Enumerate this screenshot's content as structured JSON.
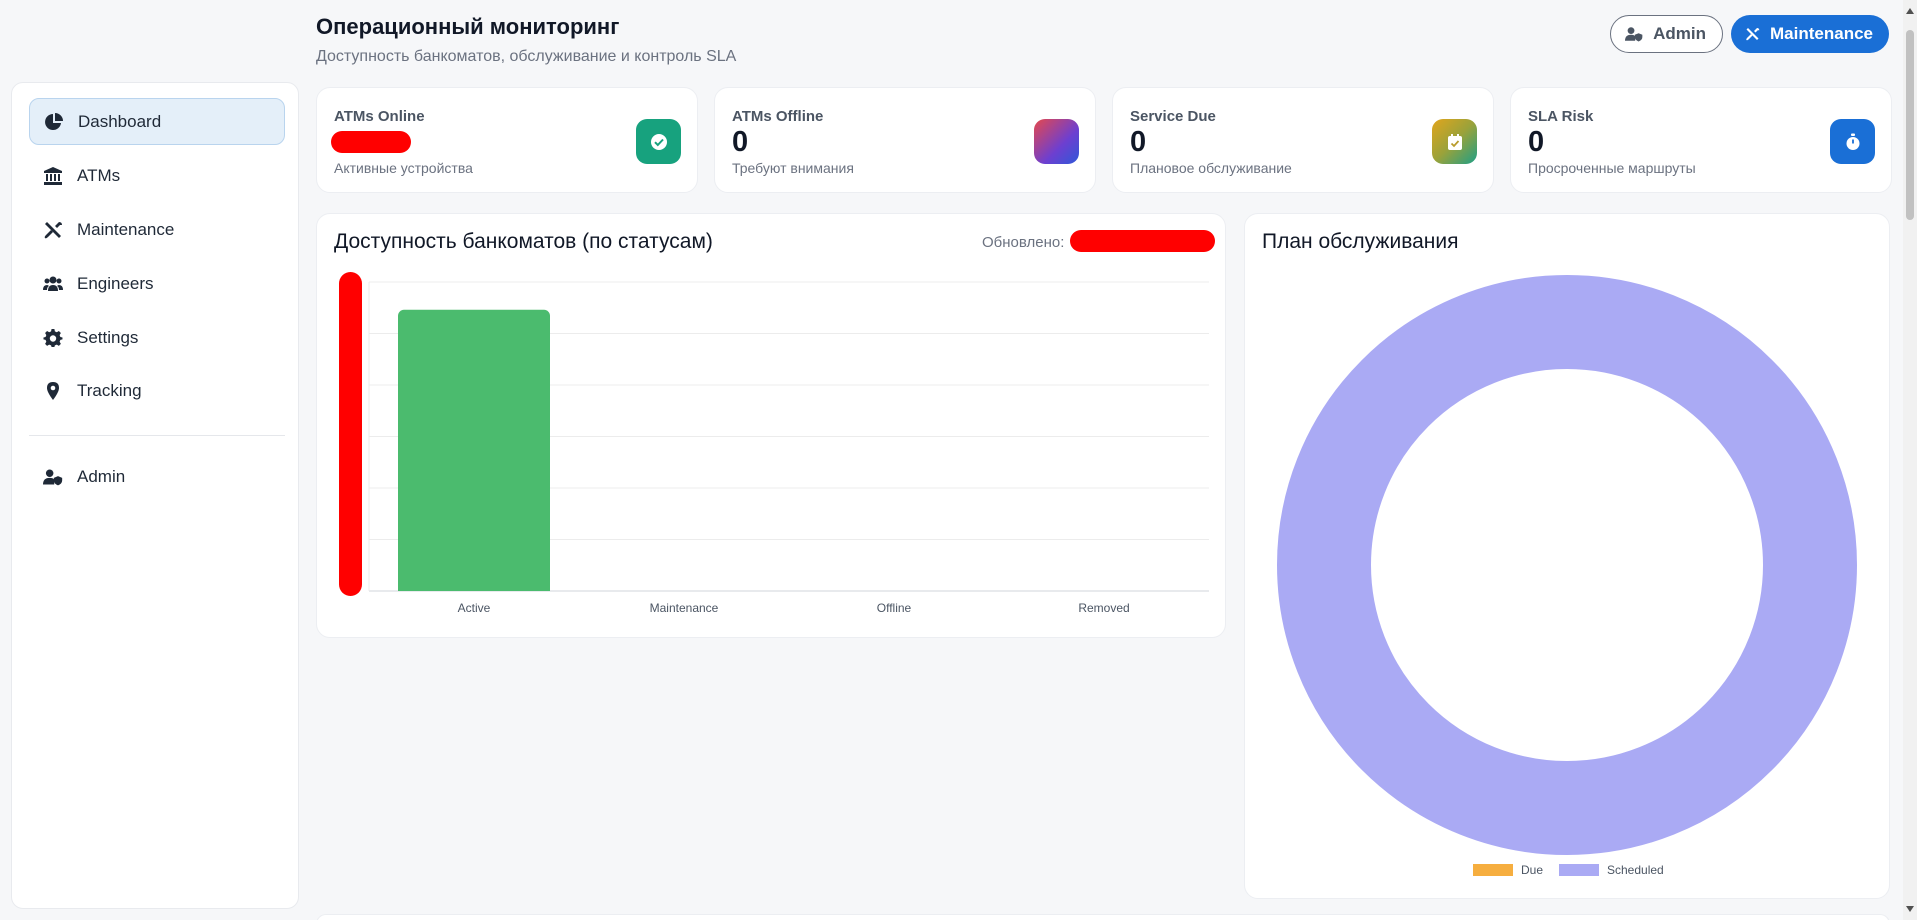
{
  "header": {
    "title": "Операционный мониторинг",
    "subtitle": "Доступность банкоматов, обслуживание и контроль SLA",
    "admin_button": "Admin",
    "maintenance_button": "Maintenance"
  },
  "sidebar": {
    "items": [
      {
        "label": "Dashboard",
        "icon": "chart-pie-icon",
        "active": true
      },
      {
        "label": "ATMs",
        "icon": "bank-icon"
      },
      {
        "label": "Maintenance",
        "icon": "tools-icon"
      },
      {
        "label": "Engineers",
        "icon": "users-icon"
      },
      {
        "label": "Settings",
        "icon": "gear-icon"
      },
      {
        "label": "Tracking",
        "icon": "map-pin-icon"
      },
      {
        "label": "Admin",
        "icon": "user-shield-icon"
      }
    ]
  },
  "stats": [
    {
      "label": "ATMs Online",
      "value": "",
      "sub": "Активные устройства",
      "icon": "check-circle-icon",
      "color": "#17a27e"
    },
    {
      "label": "ATMs Offline",
      "value": "0",
      "sub": "Требуют внимания",
      "icon": "gradient-square-icon",
      "color": "#d64550"
    },
    {
      "label": "Service Due",
      "value": "0",
      "sub": "Плановое обслуживание",
      "icon": "calendar-check-icon",
      "color": "#c6a12e"
    },
    {
      "label": "SLA Risk",
      "value": "0",
      "sub": "Просроченные маршруты",
      "icon": "stopwatch-icon",
      "color": "#1a6fd6"
    }
  ],
  "bar_chart": {
    "title": "Доступность банкоматов (по статусам)",
    "updated_label": "Обновлено:"
  },
  "donut_chart": {
    "title": "План обслуживания"
  },
  "chart_data": [
    {
      "type": "bar",
      "title": "Доступность банкоматов (по статусам)",
      "categories": [
        "Active",
        "Maintenance",
        "Offline",
        "Removed"
      ],
      "values": [
        0.91,
        0,
        0,
        0
      ],
      "value_note": "",
      "colors": [
        "#4bbb6e"
      ],
      "grid": true
    },
    {
      "type": "pie",
      "title": "План обслуживания",
      "labels": [
        "Due",
        "Scheduled"
      ],
      "values": [
        0,
        1
      ],
      "colors": [
        "#f6ae3f",
        "#aaaaf4"
      ]
    }
  ]
}
